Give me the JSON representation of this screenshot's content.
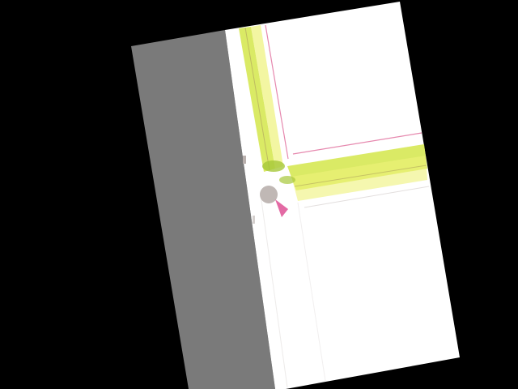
{
  "colors": {
    "background": "#000000",
    "gray_panel": "#7a7a7a",
    "page": "#ffffff",
    "frame_lime": "#d4e64a",
    "frame_yellow": "#eef27a",
    "frame_pink": "#e06a9a",
    "frame_olive": "#b8b060",
    "ornament_gray": "#b9b0ad",
    "ornament_pink": "#e05a9a",
    "ornament_green": "#a6c83a"
  },
  "icons": {
    "corner_ornament": "floral-corner-ornament-icon"
  }
}
